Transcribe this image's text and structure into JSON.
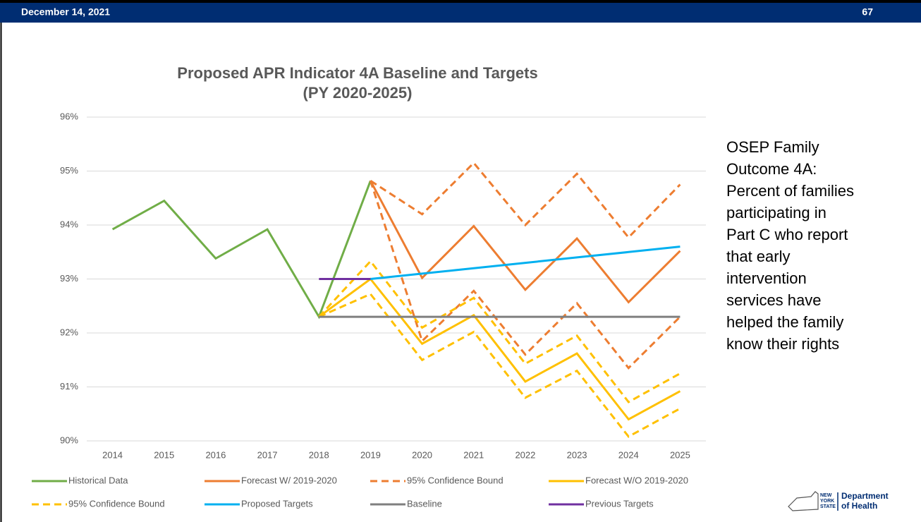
{
  "header": {
    "date": "December 14, 2021",
    "page": "67"
  },
  "chart_data": {
    "type": "line",
    "title": [
      "Proposed APR Indicator 4A Baseline and Targets",
      "(PY 2020-2025)"
    ],
    "categories": [
      "2014",
      "2015",
      "2016",
      "2017",
      "2018",
      "2019",
      "2020",
      "2021",
      "2022",
      "2023",
      "2024",
      "2025"
    ],
    "ylim": [
      90,
      96
    ],
    "yticks": [
      {
        "value": 90,
        "label": "90%"
      },
      {
        "value": 91,
        "label": "91%"
      },
      {
        "value": 92,
        "label": "92%"
      },
      {
        "value": 93,
        "label": "93%"
      },
      {
        "value": 94,
        "label": "94%"
      },
      {
        "value": 95,
        "label": "95%"
      },
      {
        "value": 96,
        "label": "96%"
      }
    ],
    "grid": true,
    "legend": "bottom",
    "series": [
      {
        "name": "Historical Data",
        "color": "#70ad47",
        "dash": false,
        "values": [
          93.92,
          94.45,
          93.38,
          93.92,
          92.3,
          94.82,
          null,
          null,
          null,
          null,
          null,
          null
        ]
      },
      {
        "name": "Forecast W/ 2019-2020",
        "color": "#ed7d31",
        "dash": false,
        "values": [
          null,
          null,
          null,
          null,
          null,
          94.82,
          93.02,
          93.98,
          92.8,
          93.75,
          92.57,
          93.52
        ]
      },
      {
        "name": "95% Confidence Bound",
        "color": "#ed7d31",
        "dash": true,
        "values": [
          null,
          null,
          null,
          null,
          null,
          94.82,
          94.2,
          95.15,
          94.0,
          94.95,
          93.77,
          94.75
        ],
        "lower_values": [
          null,
          null,
          null,
          null,
          null,
          94.82,
          91.85,
          92.78,
          91.6,
          92.55,
          91.35,
          92.3
        ]
      },
      {
        "name": "Forecast W/O 2019-2020",
        "color": "#ffc000",
        "dash": false,
        "values": [
          null,
          null,
          null,
          null,
          92.3,
          93.0,
          91.8,
          92.33,
          91.1,
          91.62,
          90.4,
          90.92
        ]
      },
      {
        "name": "95% Confidence  Bound",
        "color": "#ffc000",
        "dash": true,
        "values": [
          null,
          null,
          null,
          null,
          92.3,
          93.33,
          92.1,
          92.65,
          91.43,
          91.95,
          90.72,
          91.25
        ],
        "lower_values": [
          null,
          null,
          null,
          null,
          92.3,
          92.72,
          91.5,
          92.02,
          90.8,
          91.3,
          90.08,
          90.6
        ]
      },
      {
        "name": "Proposed Targets",
        "color": "#00b0f0",
        "dash": false,
        "values": [
          null,
          null,
          null,
          null,
          null,
          93.0,
          93.1,
          93.2,
          93.3,
          93.4,
          93.5,
          93.6
        ]
      },
      {
        "name": "Baseline",
        "color": "#7f7f7f",
        "dash": false,
        "values": [
          null,
          null,
          null,
          null,
          92.3,
          92.3,
          92.3,
          92.3,
          92.3,
          92.3,
          92.3,
          92.3
        ]
      },
      {
        "name": "Previous Targets",
        "color": "#7030a0",
        "dash": false,
        "values": [
          null,
          null,
          null,
          null,
          93.0,
          93.0,
          null,
          null,
          null,
          null,
          null,
          null
        ]
      }
    ]
  },
  "side_text": [
    "OSEP Family",
    "Outcome 4A:",
    "Percent of families",
    "participating in",
    "Part C who report",
    "that early",
    "intervention",
    "services have",
    "helped the family",
    "know their rights"
  ],
  "logo": {
    "state": [
      "NEW",
      "YORK",
      "STATE"
    ],
    "department": [
      "Department",
      "of Health"
    ]
  }
}
